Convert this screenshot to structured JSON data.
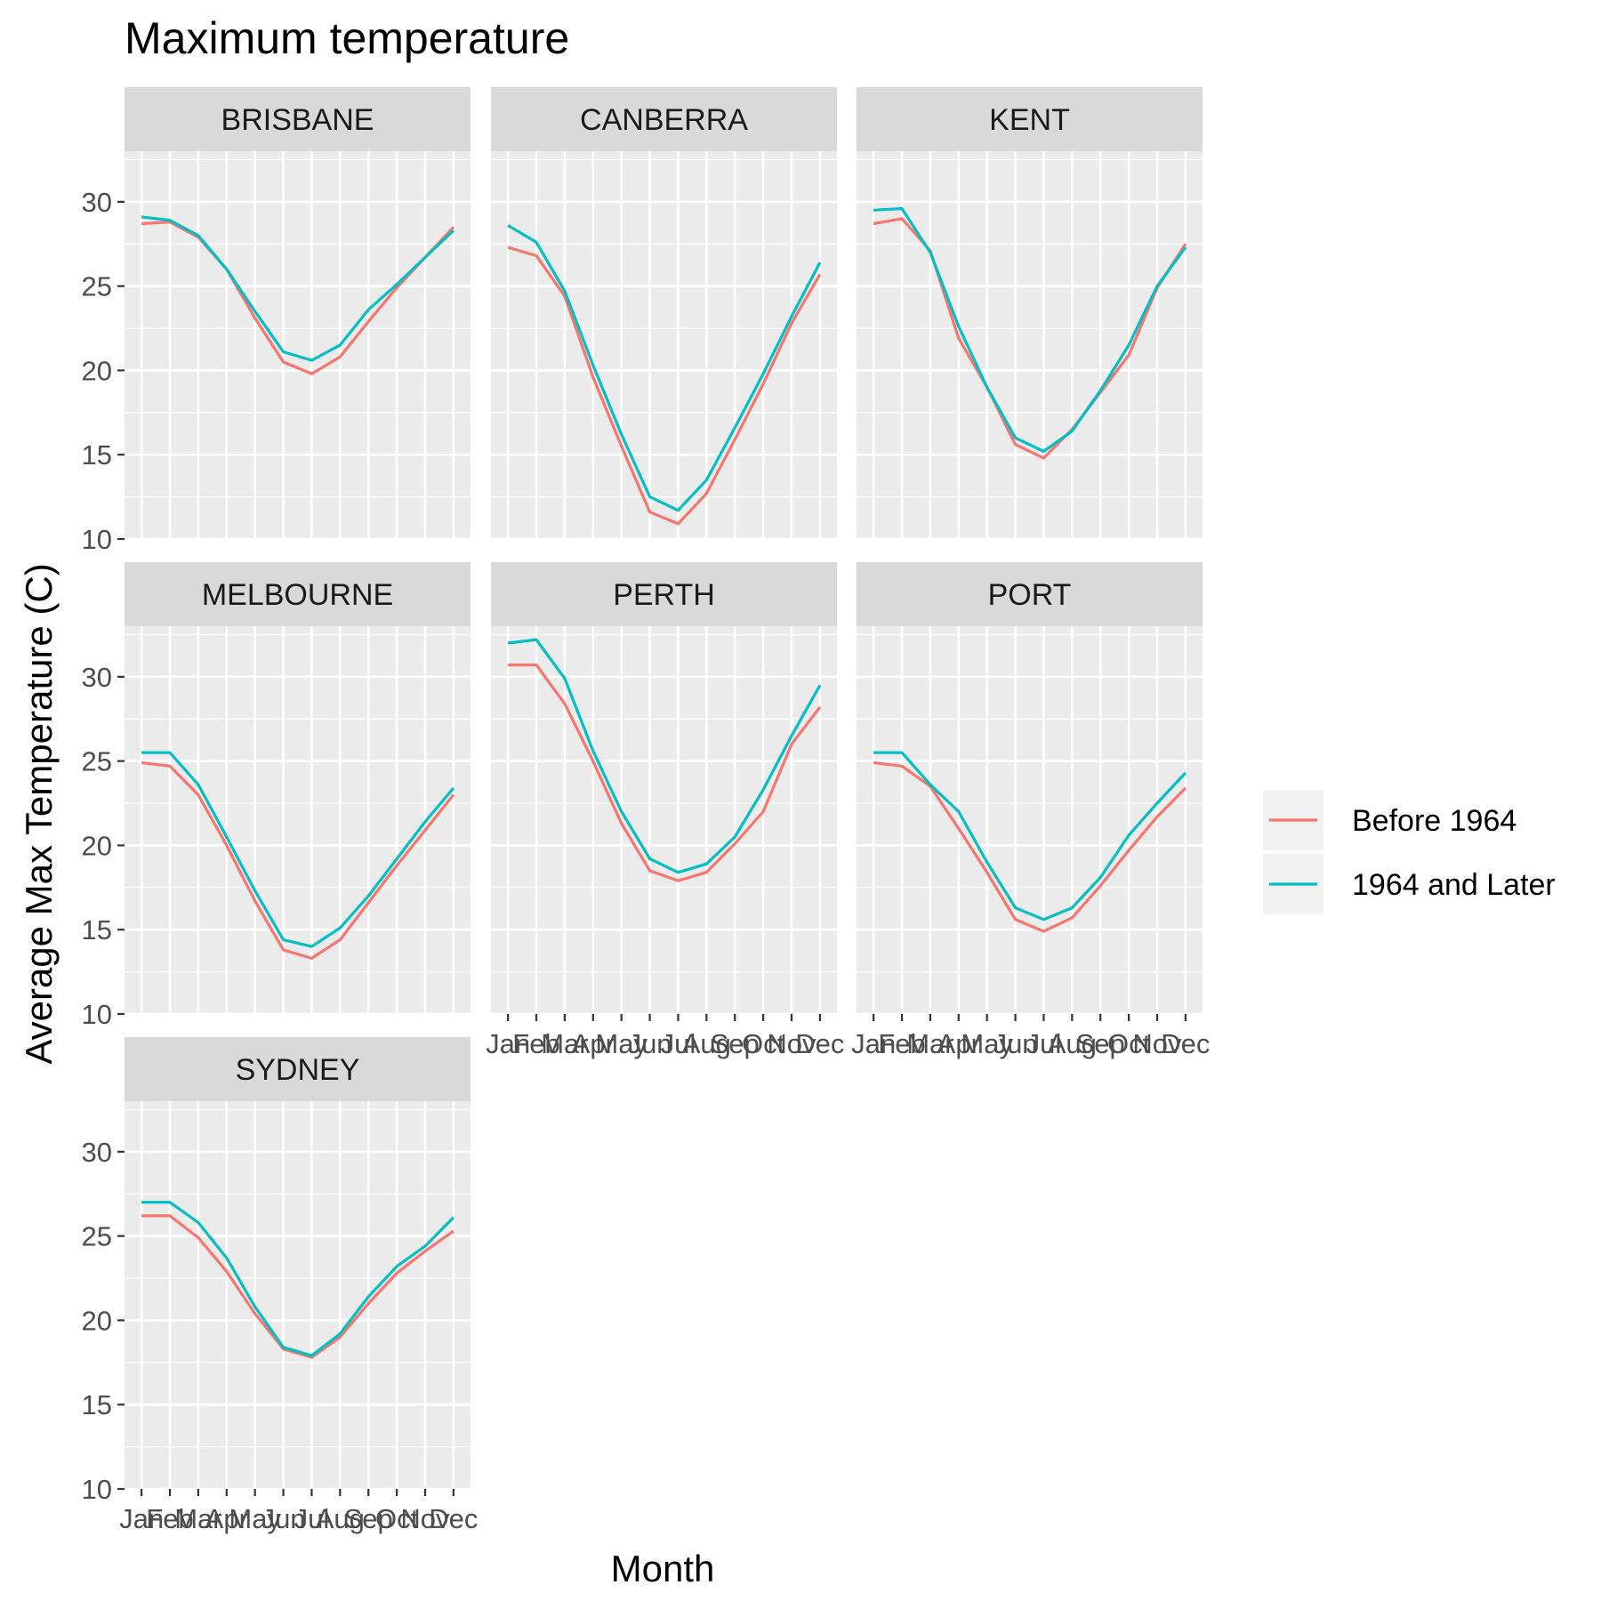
{
  "chart_data": {
    "type": "line",
    "title": "Maximum temperature",
    "xlabel": "Month",
    "ylabel": "Average Max Temperature (C)",
    "ylim": [
      10,
      33
    ],
    "yticks": [
      10,
      15,
      20,
      25,
      30
    ],
    "categories": [
      "Jan",
      "Feb",
      "Mar",
      "Apr",
      "May",
      "Jun",
      "Jul",
      "Aug",
      "Sep",
      "Oct",
      "Nov",
      "Dec"
    ],
    "legend_position": "right",
    "legend": [
      {
        "name": "Before 1964",
        "color": "#F8766D"
      },
      {
        "name": "1964 and Later",
        "color": "#00BFC4"
      }
    ],
    "panels": [
      {
        "name": "BRISBANE",
        "series": [
          {
            "name": "Before 1964",
            "values": [
              28.7,
              28.8,
              27.9,
              26.0,
              23.1,
              20.5,
              19.8,
              20.8,
              22.9,
              24.9,
              26.7,
              28.5
            ]
          },
          {
            "name": "1964 and Later",
            "values": [
              29.1,
              28.9,
              28.0,
              26.0,
              23.5,
              21.1,
              20.6,
              21.5,
              23.6,
              25.1,
              26.7,
              28.3
            ]
          }
        ]
      },
      {
        "name": "CANBERRA",
        "series": [
          {
            "name": "Before 1964",
            "values": [
              27.3,
              26.8,
              24.4,
              19.6,
              15.5,
              11.6,
              10.9,
              12.7,
              15.9,
              19.2,
              22.8,
              25.7
            ]
          },
          {
            "name": "1964 and Later",
            "values": [
              28.6,
              27.6,
              24.7,
              20.3,
              16.2,
              12.5,
              11.7,
              13.5,
              16.6,
              19.8,
              23.2,
              26.4
            ]
          }
        ]
      },
      {
        "name": "KENT",
        "series": [
          {
            "name": "Before 1964",
            "values": [
              28.7,
              29.0,
              27.1,
              21.9,
              19.0,
              15.6,
              14.8,
              16.5,
              18.7,
              20.9,
              24.9,
              27.5
            ]
          },
          {
            "name": "1964 and Later",
            "values": [
              29.5,
              29.6,
              27.0,
              22.6,
              19.0,
              16.0,
              15.2,
              16.4,
              18.8,
              21.5,
              25.0,
              27.3
            ]
          }
        ]
      },
      {
        "name": "MELBOURNE",
        "series": [
          {
            "name": "Before 1964",
            "values": [
              24.9,
              24.7,
              23.0,
              20.0,
              16.7,
              13.8,
              13.3,
              14.4,
              16.6,
              18.8,
              20.9,
              23.0
            ]
          },
          {
            "name": "1964 and Later",
            "values": [
              25.5,
              25.5,
              23.6,
              20.5,
              17.3,
              14.4,
              14.0,
              15.1,
              17.0,
              19.2,
              21.4,
              23.4
            ]
          }
        ]
      },
      {
        "name": "PERTH",
        "series": [
          {
            "name": "Before 1964",
            "values": [
              30.7,
              30.7,
              28.4,
              25.0,
              21.3,
              18.5,
              17.9,
              18.4,
              20.1,
              22.0,
              26.0,
              28.2
            ]
          },
          {
            "name": "1964 and Later",
            "values": [
              32.0,
              32.2,
              29.9,
              25.6,
              22.0,
              19.2,
              18.4,
              18.9,
              20.5,
              23.3,
              26.5,
              29.5
            ]
          }
        ]
      },
      {
        "name": "PORT",
        "series": [
          {
            "name": "Before 1964",
            "values": [
              24.9,
              24.7,
              23.5,
              21.0,
              18.4,
              15.6,
              14.9,
              15.7,
              17.6,
              19.7,
              21.7,
              23.4
            ]
          },
          {
            "name": "1964 and Later",
            "values": [
              25.5,
              25.5,
              23.6,
              22.0,
              19.0,
              16.3,
              15.6,
              16.3,
              18.1,
              20.6,
              22.5,
              24.3
            ]
          }
        ]
      },
      {
        "name": "SYDNEY",
        "series": [
          {
            "name": "Before 1964",
            "values": [
              26.2,
              26.2,
              24.9,
              22.9,
              20.4,
              18.3,
              17.8,
              19.0,
              21.0,
              22.8,
              24.1,
              25.3
            ]
          },
          {
            "name": "1964 and Later",
            "values": [
              27.0,
              27.0,
              25.8,
              23.7,
              20.8,
              18.4,
              17.9,
              19.2,
              21.4,
              23.2,
              24.4,
              26.1
            ]
          }
        ]
      }
    ]
  }
}
